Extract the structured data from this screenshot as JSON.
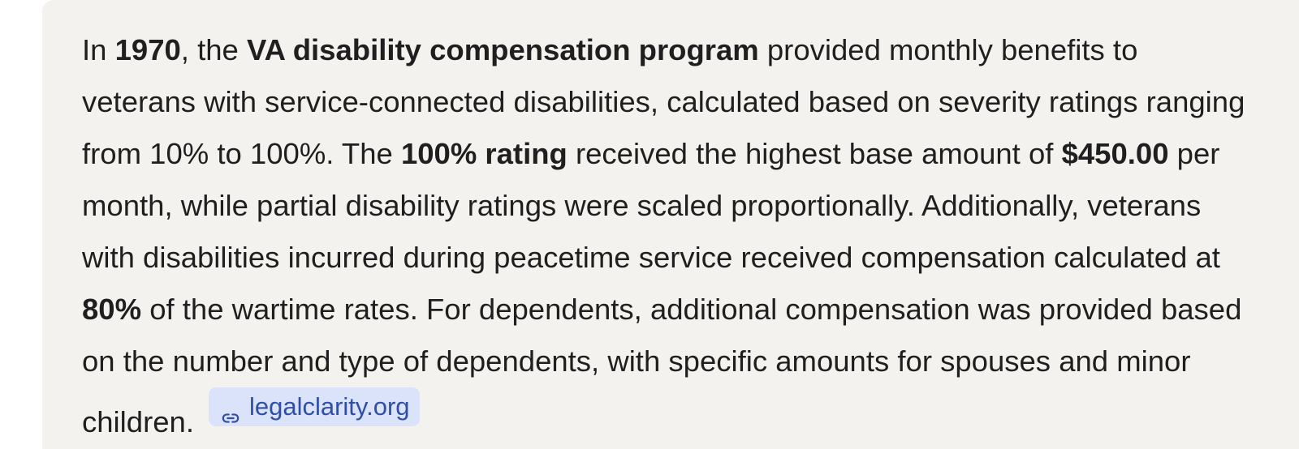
{
  "answer": {
    "s1": "In ",
    "b1": "1970",
    "s2": ", the ",
    "b2": "VA disability compensation program",
    "s3": " provided monthly benefits to veterans with service-connected disabilities, calculated based on severity ratings ranging from 10% to 100%. The ",
    "b3": "100% rating",
    "s4": " received the highest base amount of ",
    "b4": "$450.00",
    "s5": " per month, while partial disability ratings were scaled proportionally. Additionally, veterans with disabilities incurred during peacetime service received compensation calculated at ",
    "b5": "80%",
    "s6": " of the wartime rates. For dependents, additional compensation was provided based on the number and type of dependents, with specific amounts for spouses and minor children."
  },
  "source_chip": {
    "label": "legalclarity.org",
    "icon": "link-icon"
  },
  "colors": {
    "card_background": "#f4f2ef",
    "text": "#1f1f1f",
    "chip_background": "#dbe3fb",
    "chip_text": "#2f4fa6"
  }
}
